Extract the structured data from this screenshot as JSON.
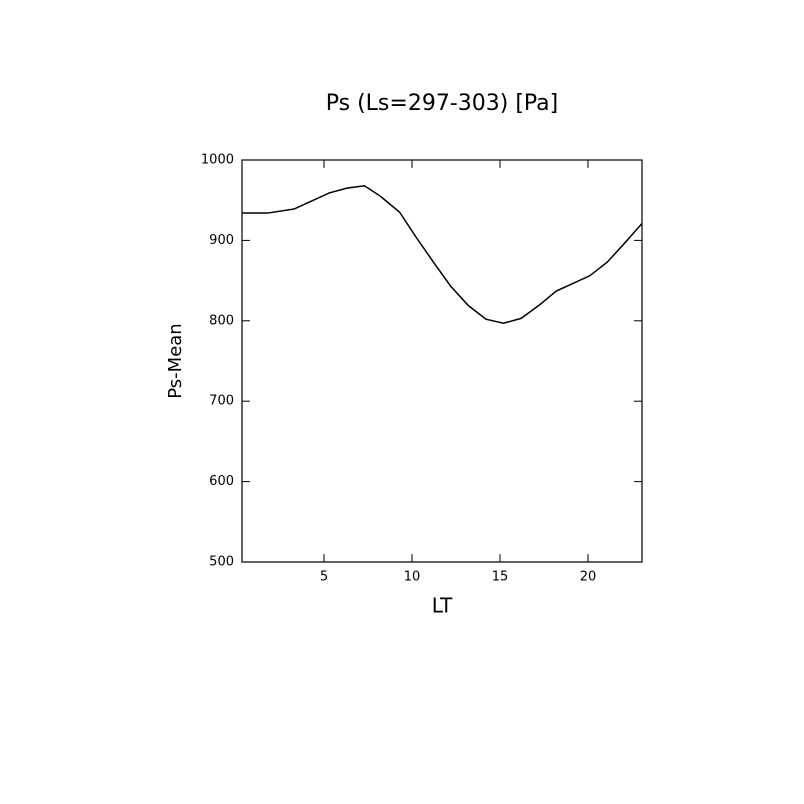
{
  "chart_data": {
    "type": "line",
    "title": "Ps (Ls=297-303) [Pa]",
    "x_label": "LT",
    "y_label": "Ps-Mean",
    "x": [
      0.34,
      1.8,
      3.3,
      5.3,
      6.3,
      7.3,
      8.2,
      9.3,
      10.2,
      11.25,
      12.2,
      13.2,
      14.2,
      15.2,
      16.2,
      17.2,
      18.2,
      19.1,
      20.1,
      21.1,
      22.1,
      23.07
    ],
    "series": [
      {
        "name": "Ps-Mean",
        "color": "#000000",
        "values": [
          934,
          934,
          939,
          959,
          965,
          968,
          955,
          935,
          905,
          872,
          843,
          819,
          802,
          797,
          803,
          819,
          837,
          846,
          856,
          873,
          897,
          921
        ]
      }
    ],
    "xlim": [
      0.34,
      23.07
    ],
    "ylim": [
      500,
      1000
    ],
    "xticks": [
      5,
      10,
      15,
      20
    ],
    "yticks": [
      500,
      600,
      700,
      800,
      900,
      1000
    ]
  }
}
